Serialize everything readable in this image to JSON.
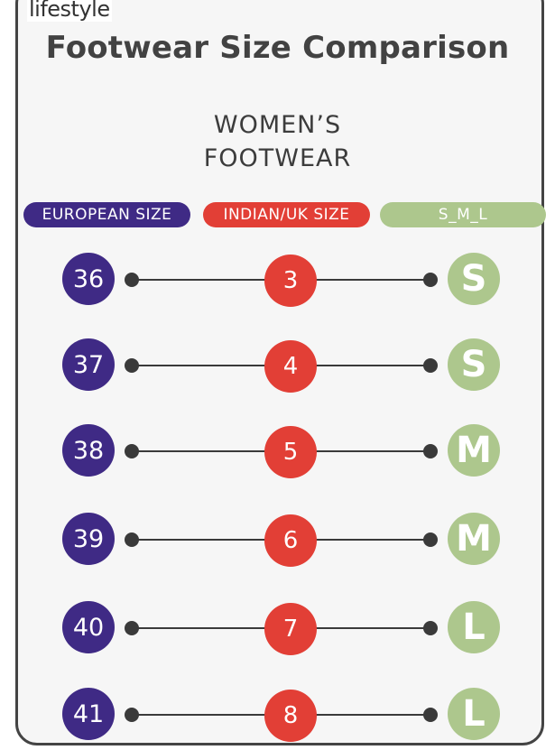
{
  "brand": {
    "logo_text": "lifestyle"
  },
  "header": {
    "title": "Footwear Size Comparison",
    "subtitle_line1": "WOMEN’S",
    "subtitle_line2": "FOOTWEAR"
  },
  "columns": {
    "european": "EUROPEAN SIZE",
    "indian_uk": "INDIAN/UK SIZE",
    "sml": "S_M_L"
  },
  "rows": [
    {
      "eu": "36",
      "in": "3",
      "sml": "S"
    },
    {
      "eu": "37",
      "in": "4",
      "sml": "S"
    },
    {
      "eu": "38",
      "in": "5",
      "sml": "M"
    },
    {
      "eu": "39",
      "in": "6",
      "sml": "M"
    },
    {
      "eu": "40",
      "in": "7",
      "sml": "L"
    },
    {
      "eu": "41",
      "in": "8",
      "sml": "L"
    }
  ],
  "colors": {
    "european": "#3f2a85",
    "indian_uk": "#e23f36",
    "sml": "#adc78d",
    "connector": "#3a3a3a"
  }
}
